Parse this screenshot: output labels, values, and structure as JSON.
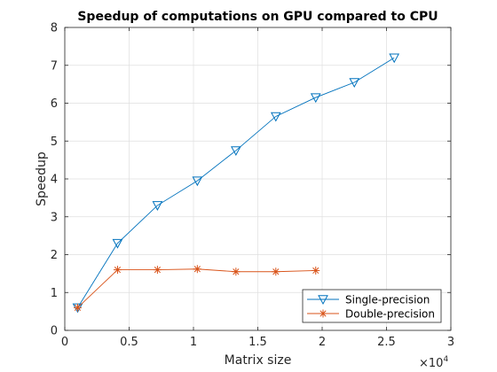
{
  "chart_data": {
    "type": "line",
    "title": "Speedup of computations on GPU compared to CPU",
    "xlabel": "Matrix size",
    "ylabel": "Speedup",
    "x_exponent_label": "×10",
    "x_exponent_power": "4",
    "xlim": [
      0,
      30000
    ],
    "ylim": [
      0,
      8
    ],
    "x_ticks": [
      0,
      5000,
      10000,
      15000,
      20000,
      25000,
      30000
    ],
    "x_tick_labels": [
      "0",
      "0.5",
      "1",
      "1.5",
      "2",
      "2.5",
      "3"
    ],
    "y_ticks": [
      0,
      1,
      2,
      3,
      4,
      5,
      6,
      7,
      8
    ],
    "y_tick_labels": [
      "0",
      "1",
      "2",
      "3",
      "4",
      "5",
      "6",
      "7",
      "8"
    ],
    "grid": true,
    "legend_position": "bottom-right",
    "series": [
      {
        "name": "Single-precision",
        "color": "#0072BD",
        "marker": "triangle-down",
        "x": [
          1000,
          4100,
          7200,
          10300,
          13300,
          16400,
          19500,
          22500,
          25600
        ],
        "y": [
          0.6,
          2.3,
          3.3,
          3.95,
          4.75,
          5.65,
          6.15,
          6.55,
          7.2
        ]
      },
      {
        "name": "Double-precision",
        "color": "#D95319",
        "marker": "asterisk",
        "x": [
          1000,
          4100,
          7200,
          10300,
          13300,
          16400,
          19500
        ],
        "y": [
          0.6,
          1.6,
          1.6,
          1.62,
          1.55,
          1.55,
          1.58
        ]
      }
    ]
  }
}
